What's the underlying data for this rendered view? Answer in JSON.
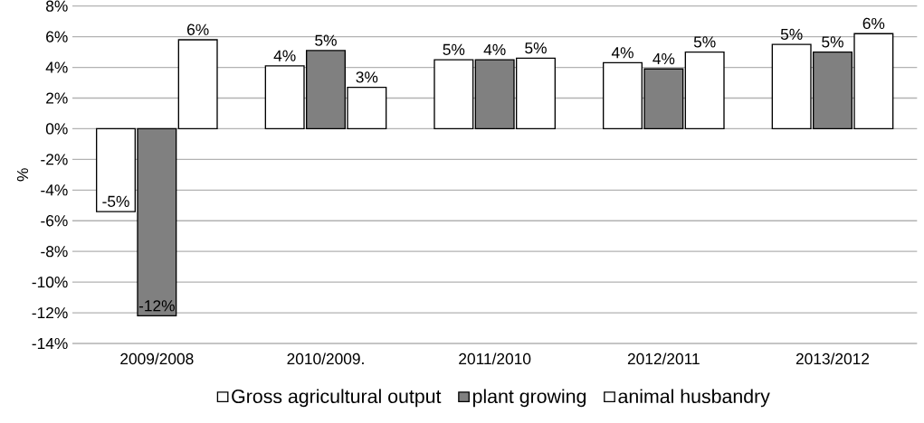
{
  "chart_data": {
    "type": "bar",
    "ylabel": "%",
    "categories": [
      "2009/2008",
      "2010/2009.",
      "2011/2010",
      "2012/2011",
      "2013/2012"
    ],
    "series": [
      {
        "name": "Gross agricultural output",
        "color": "#ffffff",
        "values": [
          -5.4,
          4.1,
          4.5,
          4.3,
          5.5
        ],
        "value_labels": [
          "-5%",
          "4%",
          "5%",
          "4%",
          "5%"
        ]
      },
      {
        "name": "plant growing",
        "color": "#808080",
        "values": [
          -12.2,
          5.1,
          4.5,
          3.9,
          5.0
        ],
        "value_labels": [
          "-12%",
          "5%",
          "4%",
          "4%",
          "5%"
        ]
      },
      {
        "name": "animal husbandry",
        "color": "#ffffff",
        "values": [
          5.8,
          2.7,
          4.6,
          5.0,
          6.2
        ],
        "value_labels": [
          "6%",
          "3%",
          "5%",
          "5%",
          "6%"
        ]
      }
    ],
    "ylim": [
      -14,
      8
    ],
    "yticks": [
      {
        "value": -14,
        "label": "-14%"
      },
      {
        "value": -12,
        "label": "-12%"
      },
      {
        "value": -10,
        "label": "-10%"
      },
      {
        "value": -8,
        "label": "-8%"
      },
      {
        "value": -6,
        "label": "-6%"
      },
      {
        "value": -4,
        "label": "-4%"
      },
      {
        "value": -2,
        "label": "-2%"
      },
      {
        "value": 0,
        "label": "0%"
      },
      {
        "value": 2,
        "label": "2%"
      },
      {
        "value": 4,
        "label": "4%"
      },
      {
        "value": 6,
        "label": "6%"
      },
      {
        "value": 8,
        "label": "8%"
      }
    ],
    "grid": "y",
    "legend": "bottom"
  }
}
